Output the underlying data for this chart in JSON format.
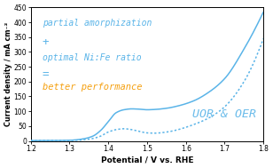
{
  "xlim": [
    1.2,
    1.8
  ],
  "ylim": [
    0,
    450
  ],
  "xticks": [
    1.2,
    1.3,
    1.4,
    1.5,
    1.6,
    1.7,
    1.8
  ],
  "yticks": [
    0,
    50,
    100,
    150,
    200,
    250,
    300,
    350,
    400,
    450
  ],
  "xlabel": "Potential / V vs. RHE",
  "ylabel": "Current density / mA cm⁻²",
  "curve_color": "#5ab4e8",
  "text_blue": "#5ab4e8",
  "text_orange": "#f5a010",
  "annotation_lines": [
    "partial amorphization",
    "+",
    "optimal Ni:Fe ratio",
    "=",
    "better performance"
  ],
  "annotation_colors": [
    "#5ab4e8",
    "#5ab4e8",
    "#5ab4e8",
    "#5ab4e8",
    "#f5a010"
  ],
  "uor_oer_text": "UOR & OER",
  "background_color": "#ffffff",
  "figsize": [
    3.08,
    1.89
  ],
  "dpi": 100,
  "uor_x_points": [
    1.2,
    1.25,
    1.28,
    1.3,
    1.32,
    1.34,
    1.36,
    1.38,
    1.4,
    1.42,
    1.44,
    1.46,
    1.48,
    1.5,
    1.52,
    1.55,
    1.58,
    1.62,
    1.66,
    1.7,
    1.75,
    1.8
  ],
  "uor_y_points": [
    1,
    1,
    1.5,
    2,
    4,
    8,
    16,
    35,
    65,
    95,
    105,
    108,
    107,
    105,
    106,
    110,
    118,
    135,
    165,
    210,
    310,
    435
  ],
  "oer_x_points": [
    1.2,
    1.25,
    1.28,
    1.3,
    1.32,
    1.34,
    1.36,
    1.38,
    1.4,
    1.42,
    1.44,
    1.46,
    1.48,
    1.5,
    1.52,
    1.54,
    1.56,
    1.58,
    1.62,
    1.66,
    1.7,
    1.75,
    1.8
  ],
  "oer_y_points": [
    1,
    1,
    1.2,
    1.5,
    2,
    4,
    8,
    16,
    30,
    38,
    41,
    38,
    32,
    27,
    26,
    28,
    32,
    38,
    55,
    78,
    115,
    200,
    345
  ]
}
